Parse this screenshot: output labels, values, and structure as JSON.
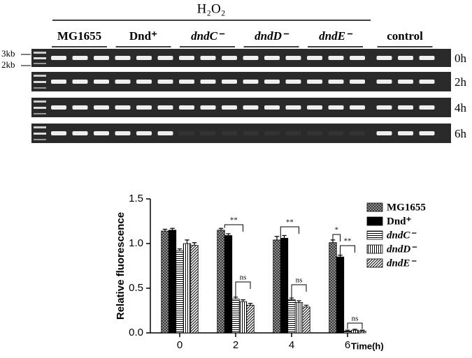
{
  "gel": {
    "treatment": "H₂O₂",
    "groups": [
      "MG1655",
      "Dnd⁺",
      "dndC⁻",
      "dndD⁻",
      "dndE⁻",
      "control"
    ],
    "markers": [
      "3kb",
      "2kb"
    ],
    "rows": [
      "0h",
      "2h",
      "4h",
      "6h"
    ]
  },
  "chart_data": {
    "type": "bar",
    "xlabel": "Time(h)",
    "ylabel": "Relative fluorescence",
    "categories": [
      "0",
      "2",
      "4",
      "6"
    ],
    "series": [
      {
        "name": "MG1655",
        "color": "#000000",
        "pattern": "crosshatch",
        "values": [
          1.14,
          1.15,
          1.04,
          1.01
        ],
        "errors": [
          0.02,
          0.02,
          0.04,
          0.03
        ]
      },
      {
        "name": "Dnd⁺",
        "color": "#000000",
        "pattern": "solid",
        "values": [
          1.15,
          1.09,
          1.06,
          0.85
        ],
        "errors": [
          0.02,
          0.02,
          0.03,
          0.02
        ]
      },
      {
        "name": "dndC⁻",
        "color": "#000000",
        "pattern": "horizontal",
        "values": [
          0.92,
          0.38,
          0.37,
          0.02
        ],
        "errors": [
          0.02,
          0.02,
          0.02,
          0.01
        ]
      },
      {
        "name": "dndD⁻",
        "color": "#000000",
        "pattern": "vertical",
        "values": [
          1.0,
          0.35,
          0.34,
          0.03
        ],
        "errors": [
          0.04,
          0.02,
          0.02,
          0.01
        ]
      },
      {
        "name": "dndE⁻",
        "color": "#000000",
        "pattern": "diagonal",
        "values": [
          0.98,
          0.31,
          0.29,
          0.02
        ],
        "errors": [
          0.03,
          0.02,
          0.02,
          0.01
        ]
      }
    ],
    "ylim": [
      0,
      1.5
    ],
    "yticks": [
      {
        "value": 0,
        "label": "0.0"
      },
      0.5,
      {
        "value": 1,
        "label": "1.0"
      },
      1.5
    ],
    "annotations": [
      "**",
      "ns",
      "**",
      "ns",
      "*",
      "**",
      "ns"
    ]
  }
}
